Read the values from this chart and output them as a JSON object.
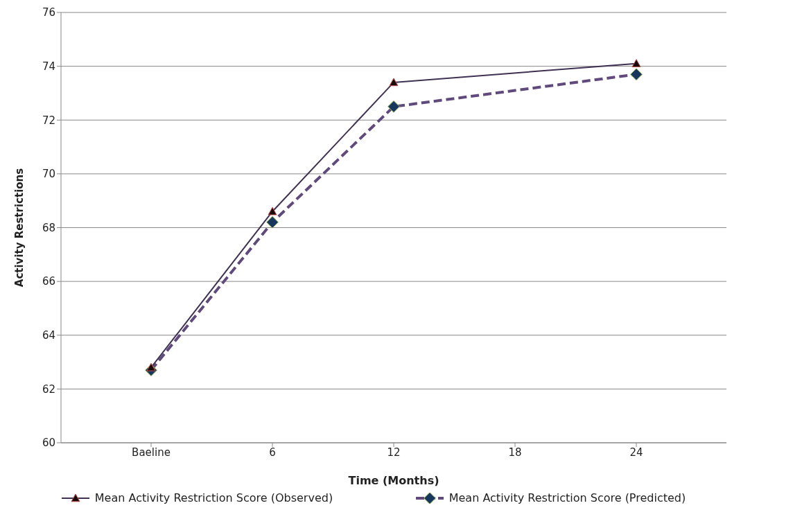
{
  "chart_data": {
    "type": "line",
    "xlabel": "Time (Months)",
    "ylabel": "Activity Restrictions",
    "categories": [
      "Baeline",
      "6",
      "12",
      "18",
      "24"
    ],
    "series": [
      {
        "name": "Mean Activity Restriction Score (Observed)",
        "color": "#3f3151",
        "marker": "triangle",
        "line_style": "solid",
        "values": [
          62.8,
          68.6,
          73.4,
          null,
          74.1
        ]
      },
      {
        "name": "Mean Activity Restriction Score (Predicted)",
        "color": "#604a7b",
        "marker": "diamond",
        "line_style": "dashed",
        "values": [
          62.7,
          68.2,
          72.5,
          null,
          73.7
        ]
      }
    ],
    "ylim": [
      60,
      76
    ],
    "yticks": [
      60,
      62,
      64,
      66,
      68,
      70,
      72,
      74,
      76
    ],
    "grid": "y",
    "legend": "bottom"
  }
}
